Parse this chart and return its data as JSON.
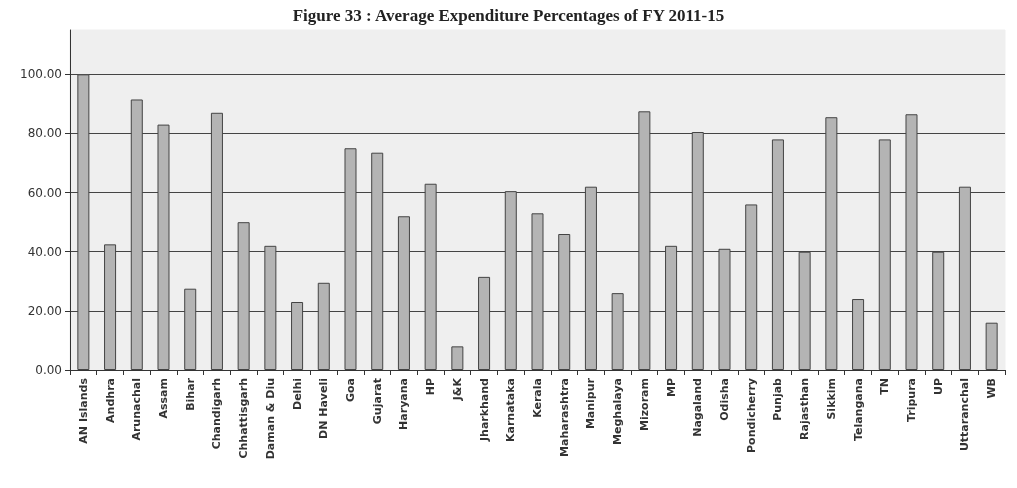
{
  "chart_data": {
    "type": "bar",
    "title": "Figure 33 : Average Expenditure Percentages of FY 2011-15",
    "categories": [
      "AN Islands",
      "Andhra",
      "Arunachal",
      "Assam",
      "Bihar",
      "Chandigarh",
      "Chhattisgarh",
      "Daman & Diu",
      "Delhi",
      "DN Haveli",
      "Goa",
      "Gujarat",
      "Haryana",
      "HP",
      "J&K",
      "Jharkhand",
      "Karnataka",
      "Kerala",
      "Maharashtra",
      "Manipur",
      "Meghalaya",
      "Mizoram",
      "MP",
      "Nagaland",
      "Odisha",
      "Pondicherry",
      "Punjab",
      "Rajasthan",
      "Sikkim",
      "Telangana",
      "TN",
      "Tripura",
      "UP",
      "Uttaranchal",
      "WB"
    ],
    "values": [
      100,
      42.5,
      91.5,
      83,
      27.5,
      87,
      50,
      42,
      23,
      29.5,
      75,
      73.5,
      52,
      63,
      8,
      31.5,
      60.5,
      53,
      46,
      62,
      26,
      87.5,
      42,
      80.5,
      41,
      56,
      78,
      40,
      85.5,
      24,
      78,
      86.5,
      40,
      62,
      16
    ],
    "color": "#b4b4b4",
    "ylim": [
      0,
      115
    ],
    "yticks": [
      {
        "value": 0,
        "label": "0.00"
      },
      {
        "value": 20,
        "label": "20.00"
      },
      {
        "value": 40,
        "label": "40.00"
      },
      {
        "value": 60,
        "label": "60.00"
      },
      {
        "value": 80,
        "label": "80.00"
      },
      {
        "value": 100,
        "label": "100.00"
      }
    ],
    "grid": "y"
  }
}
